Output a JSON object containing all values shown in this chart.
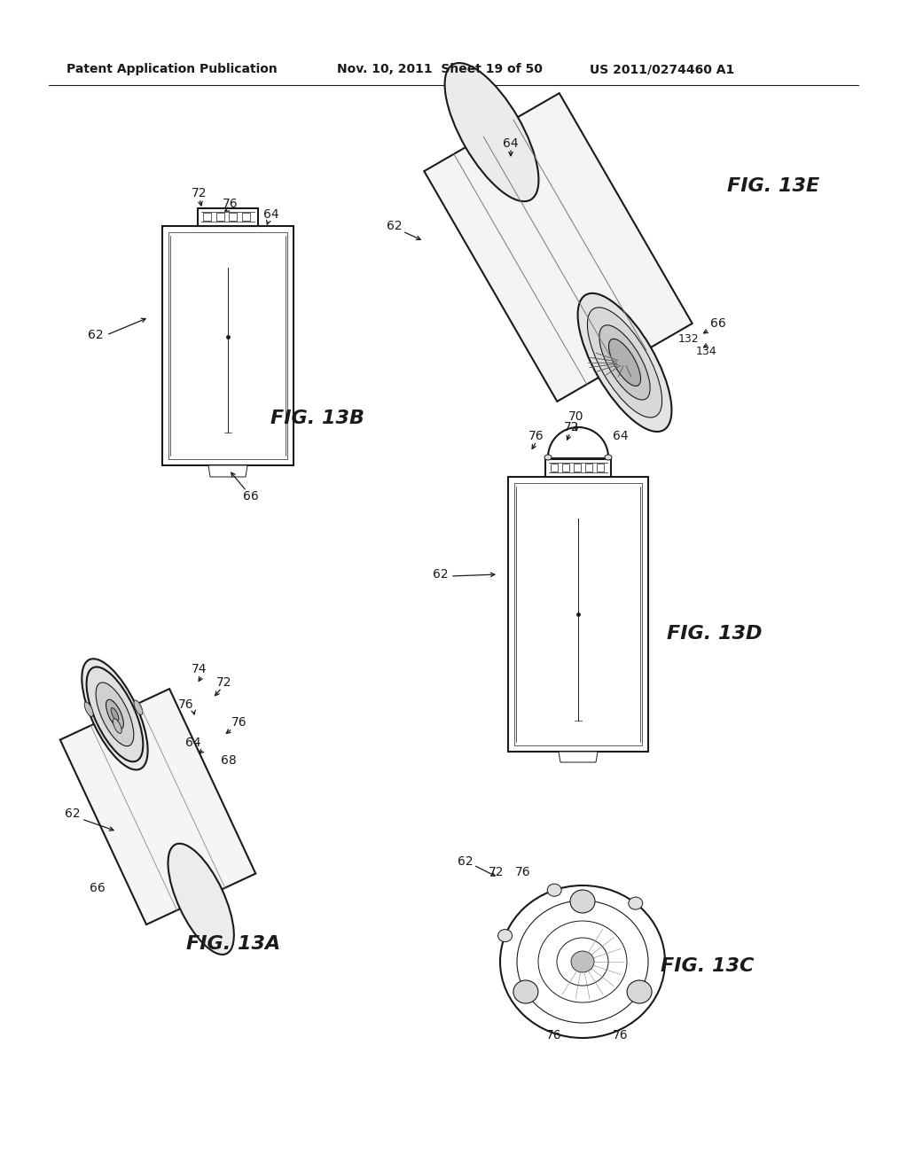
{
  "background_color": "#ffffff",
  "header_left": "Patent Application Publication",
  "header_mid": "Nov. 10, 2011  Sheet 19 of 50",
  "header_right": "US 2011/0274460 A1",
  "lc": "#1a1a1a",
  "lw": 1.5,
  "tlw": 0.7
}
